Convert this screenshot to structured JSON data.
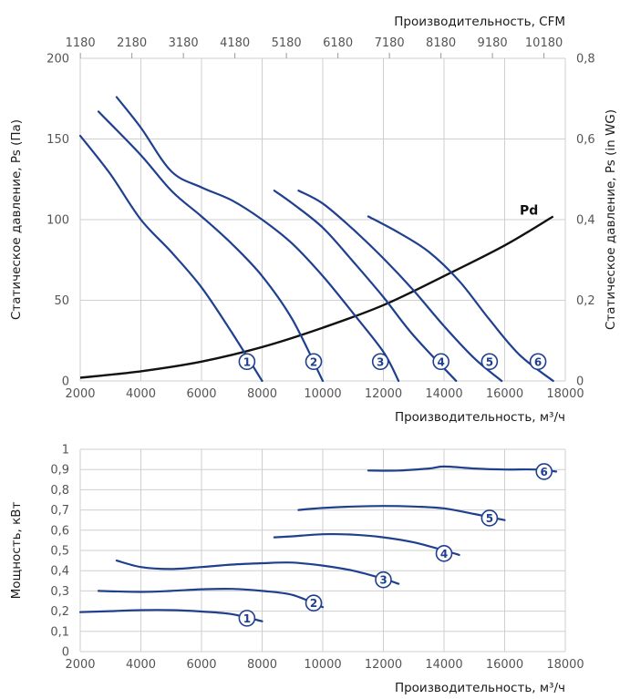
{
  "chart_data": [
    {
      "type": "line",
      "title": "",
      "xlabel": "Производительность, м³/ч",
      "x2label": "Производительность, CFM",
      "ylabel": "Статическое давление, Ps (Па)",
      "y2label": "Статическое давление, Ps (in WG)",
      "xlim": [
        2000,
        18000
      ],
      "ylim": [
        0,
        200
      ],
      "x_ticks": [
        "2000",
        "4000",
        "6000",
        "8000",
        "10000",
        "12000",
        "14000",
        "16000",
        "18000"
      ],
      "y_ticks": [
        "0",
        "50",
        "100",
        "150",
        "200"
      ],
      "x2_ticks": [
        "1180",
        "2180",
        "3180",
        "4180",
        "5180",
        "6180",
        "7180",
        "8180",
        "9180",
        "10180"
      ],
      "y2_ticks": [
        "0",
        "0,2",
        "0,4",
        "0,6",
        "0,8"
      ],
      "grid": true,
      "series": [
        {
          "name": "1",
          "points": [
            [
              2000,
              152
            ],
            [
              3000,
              128
            ],
            [
              4000,
              100
            ],
            [
              5000,
              80
            ],
            [
              6000,
              58
            ],
            [
              7000,
              30
            ],
            [
              8000,
              0
            ]
          ],
          "label_at": [
            7500,
            12
          ]
        },
        {
          "name": "2",
          "points": [
            [
              2600,
              167
            ],
            [
              4000,
              140
            ],
            [
              5000,
              118
            ],
            [
              6000,
              102
            ],
            [
              7000,
              85
            ],
            [
              8000,
              65
            ],
            [
              9000,
              38
            ],
            [
              10000,
              0
            ]
          ],
          "label_at": [
            9700,
            12
          ]
        },
        {
          "name": "3",
          "points": [
            [
              3200,
              176
            ],
            [
              4000,
              157
            ],
            [
              5000,
              130
            ],
            [
              6000,
              120
            ],
            [
              7000,
              112
            ],
            [
              8000,
              100
            ],
            [
              9000,
              85
            ],
            [
              10000,
              65
            ],
            [
              11000,
              42
            ],
            [
              12000,
              18
            ],
            [
              12500,
              0
            ]
          ],
          "label_at": [
            11900,
            12
          ]
        },
        {
          "name": "4",
          "points": [
            [
              8400,
              118
            ],
            [
              9000,
              110
            ],
            [
              10000,
              95
            ],
            [
              11000,
              74
            ],
            [
              12000,
              52
            ],
            [
              13000,
              28
            ],
            [
              14400,
              0
            ]
          ],
          "label_at": [
            13900,
            12
          ]
        },
        {
          "name": "5",
          "points": [
            [
              9200,
              118
            ],
            [
              10000,
              110
            ],
            [
              11000,
              94
            ],
            [
              12000,
              76
            ],
            [
              13000,
              56
            ],
            [
              14000,
              34
            ],
            [
              15000,
              14
            ],
            [
              15900,
              0
            ]
          ],
          "label_at": [
            15500,
            12
          ]
        },
        {
          "name": "6",
          "points": [
            [
              11500,
              102
            ],
            [
              12500,
              92
            ],
            [
              13500,
              80
            ],
            [
              14500,
              62
            ],
            [
              15500,
              38
            ],
            [
              16500,
              16
            ],
            [
              17600,
              0
            ]
          ],
          "label_at": [
            17100,
            12
          ]
        }
      ],
      "pd_curve": {
        "name": "Pd",
        "points": [
          [
            2000,
            2
          ],
          [
            4000,
            6
          ],
          [
            6000,
            12
          ],
          [
            8000,
            21
          ],
          [
            10000,
            33
          ],
          [
            12000,
            47
          ],
          [
            14000,
            65
          ],
          [
            16000,
            84
          ],
          [
            17600,
            102
          ]
        ],
        "label_at": [
          16800,
          103
        ]
      }
    },
    {
      "type": "line",
      "title": "",
      "xlabel": "Производительность, м³/ч",
      "ylabel": "Мощность, кВт",
      "xlim": [
        2000,
        18000
      ],
      "ylim": [
        0,
        1
      ],
      "x_ticks": [
        "2000",
        "4000",
        "6000",
        "8000",
        "10000",
        "12000",
        "14000",
        "16000",
        "18000"
      ],
      "y_ticks": [
        "0",
        "0,1",
        "0,2",
        "0,3",
        "0,4",
        "0,5",
        "0,6",
        "0,7",
        "0,8",
        "0,9",
        "1"
      ],
      "grid": true,
      "series": [
        {
          "name": "1",
          "points": [
            [
              2000,
              0.195
            ],
            [
              3000,
              0.2
            ],
            [
              4000,
              0.205
            ],
            [
              5000,
              0.205
            ],
            [
              6000,
              0.198
            ],
            [
              7000,
              0.185
            ],
            [
              8000,
              0.15
            ]
          ],
          "label_at": [
            7500,
            0.165
          ]
        },
        {
          "name": "2",
          "points": [
            [
              2600,
              0.3
            ],
            [
              4000,
              0.295
            ],
            [
              5000,
              0.3
            ],
            [
              6000,
              0.308
            ],
            [
              7000,
              0.31
            ],
            [
              8000,
              0.3
            ],
            [
              9000,
              0.28
            ],
            [
              10000,
              0.22
            ]
          ],
          "label_at": [
            9700,
            0.24
          ]
        },
        {
          "name": "3",
          "points": [
            [
              3200,
              0.45
            ],
            [
              4000,
              0.418
            ],
            [
              5000,
              0.408
            ],
            [
              6000,
              0.418
            ],
            [
              7000,
              0.43
            ],
            [
              8000,
              0.437
            ],
            [
              9000,
              0.44
            ],
            [
              10000,
              0.425
            ],
            [
              11000,
              0.4
            ],
            [
              12000,
              0.36
            ],
            [
              12500,
              0.335
            ]
          ],
          "label_at": [
            12000,
            0.355
          ]
        },
        {
          "name": "4",
          "points": [
            [
              8400,
              0.565
            ],
            [
              9000,
              0.57
            ],
            [
              10000,
              0.58
            ],
            [
              11000,
              0.578
            ],
            [
              12000,
              0.565
            ],
            [
              13000,
              0.54
            ],
            [
              14000,
              0.5
            ],
            [
              14500,
              0.478
            ]
          ],
          "label_at": [
            14000,
            0.485
          ]
        },
        {
          "name": "5",
          "points": [
            [
              9200,
              0.7
            ],
            [
              10000,
              0.71
            ],
            [
              11000,
              0.717
            ],
            [
              12000,
              0.72
            ],
            [
              13000,
              0.717
            ],
            [
              14000,
              0.708
            ],
            [
              15000,
              0.68
            ],
            [
              16000,
              0.65
            ]
          ],
          "label_at": [
            15500,
            0.66
          ]
        },
        {
          "name": "6",
          "points": [
            [
              11500,
              0.895
            ],
            [
              12500,
              0.895
            ],
            [
              13500,
              0.905
            ],
            [
              14000,
              0.915
            ],
            [
              15000,
              0.905
            ],
            [
              16000,
              0.9
            ],
            [
              17000,
              0.9
            ],
            [
              17700,
              0.89
            ]
          ],
          "label_at": [
            17300,
            0.89
          ]
        }
      ]
    }
  ]
}
